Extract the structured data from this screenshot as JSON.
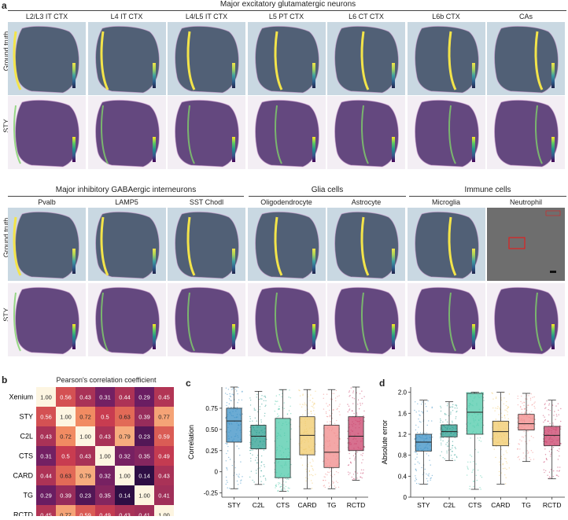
{
  "panel_a": {
    "letter": "a",
    "groups_top": [
      {
        "title": "Major excitatory glutamatergic neurons"
      }
    ],
    "groups_bottom": [
      {
        "title": "Major inhibitory GABAergic interneurons"
      },
      {
        "title": "Glia cells"
      },
      {
        "title": "Immune cells"
      }
    ],
    "row_labels": {
      "gt": "Ground truth",
      "sty": "STY"
    },
    "top_columns": [
      "L2/L3 IT CTX",
      "L4 IT CTX",
      "L4/L5 IT CTX",
      "L5 PT CTX",
      "L6 CT CTX",
      "L6b CTX",
      "CAs"
    ],
    "bottom_columns": [
      "Pvalb",
      "LAMP5",
      "SST Chodl",
      "Oligodendrocyte",
      "Astrocyte",
      "Microglia",
      "Neutrophil"
    ],
    "colors": {
      "gt_bg": "#c9d8e2",
      "sty_bg": "#f3eef4",
      "highlight": "#f3e44a",
      "tissue": "#4a2a6a",
      "red_box": "#e02020"
    }
  },
  "panel_b": {
    "letter": "b",
    "title": "Pearson's correlation coefficient",
    "labels": [
      "Xenium",
      "STY",
      "C2L",
      "CTS",
      "CARD",
      "TG",
      "RCTD"
    ],
    "matrix": [
      [
        1.0,
        0.56,
        0.43,
        0.31,
        0.44,
        0.29,
        0.45
      ],
      [
        0.56,
        1.0,
        0.72,
        0.5,
        0.63,
        0.39,
        0.77
      ],
      [
        0.43,
        0.72,
        1.0,
        0.43,
        0.79,
        0.23,
        0.59
      ],
      [
        0.31,
        0.5,
        0.43,
        1.0,
        0.32,
        0.35,
        0.49
      ],
      [
        0.44,
        0.63,
        0.79,
        0.32,
        1.0,
        0.14,
        0.43
      ],
      [
        0.29,
        0.39,
        0.23,
        0.35,
        0.14,
        1.0,
        0.41
      ],
      [
        0.45,
        0.77,
        0.59,
        0.49,
        0.43,
        0.41,
        1.0
      ]
    ],
    "display": [
      [
        "1.00",
        "0.56",
        "0.43",
        "0.31",
        "0.44",
        "0.29",
        "0.45"
      ],
      [
        "0.56",
        "1.00",
        "0.72",
        "0.5",
        "0.63",
        "0.39",
        "0.77"
      ],
      [
        "0.43",
        "0.72",
        "1.00",
        "0.43",
        "0.79",
        "0.23",
        "0.59"
      ],
      [
        "0.31",
        "0.5",
        "0.43",
        "1.00",
        "0.32",
        "0.35",
        "0.49"
      ],
      [
        "0.44",
        "0.63",
        "0.79",
        "0.32",
        "1.00",
        "0.14",
        "0.43"
      ],
      [
        "0.29",
        "0.39",
        "0.23",
        "0.35",
        "0.14",
        "1.00",
        "0.41"
      ],
      [
        "0.45",
        "0.77",
        "0.59",
        "0.49",
        "0.43",
        "0.41",
        "1.00"
      ]
    ]
  },
  "chart_data": [
    {
      "type": "box",
      "panel": "c",
      "ylabel": "Correlation",
      "categories": [
        "STY",
        "C2L",
        "CTS",
        "CARD",
        "TG",
        "RCTD"
      ],
      "colors": [
        "#3a8fc4",
        "#2a9d8f",
        "#4ec9a9",
        "#f0c96a",
        "#f08a8a",
        "#c9406a"
      ],
      "ylim": [
        -0.3,
        1.0
      ],
      "yticks": [
        "-0.25",
        "0",
        "0.25",
        "0.50",
        "0.75"
      ],
      "boxes": [
        {
          "whisker_low": -0.2,
          "q1": 0.35,
          "median": 0.6,
          "q3": 0.75,
          "whisker_high": 1.0
        },
        {
          "whisker_low": -0.15,
          "q1": 0.27,
          "median": 0.42,
          "q3": 0.55,
          "whisker_high": 0.95
        },
        {
          "whisker_low": -0.23,
          "q1": -0.07,
          "median": 0.15,
          "q3": 0.63,
          "whisker_high": 0.97
        },
        {
          "whisker_low": -0.2,
          "q1": 0.2,
          "median": 0.43,
          "q3": 0.65,
          "whisker_high": 0.97
        },
        {
          "whisker_low": -0.2,
          "q1": 0.05,
          "median": 0.23,
          "q3": 0.55,
          "whisker_high": 0.97
        },
        {
          "whisker_low": -0.1,
          "q1": 0.25,
          "median": 0.42,
          "q3": 0.65,
          "whisker_high": 1.0
        }
      ]
    },
    {
      "type": "box",
      "panel": "d",
      "ylabel": "Absolute error",
      "categories": [
        "STY",
        "C2L",
        "CTS",
        "CARD",
        "TG",
        "RCTD"
      ],
      "colors": [
        "#3a8fc4",
        "#2a9d8f",
        "#4ec9a9",
        "#f0c96a",
        "#f08a8a",
        "#c9406a"
      ],
      "ylim": [
        0,
        2.1
      ],
      "yticks": [
        "0",
        "0.4",
        "0.8",
        "1.2",
        "1.6",
        "2.0"
      ],
      "boxes": [
        {
          "whisker_low": 0.25,
          "q1": 0.88,
          "median": 1.05,
          "q3": 1.2,
          "whisker_high": 1.85
        },
        {
          "whisker_low": 0.7,
          "q1": 1.15,
          "median": 1.25,
          "q3": 1.38,
          "whisker_high": 1.82
        },
        {
          "whisker_low": 0.15,
          "q1": 1.2,
          "median": 1.62,
          "q3": 1.98,
          "whisker_high": 2.0
        },
        {
          "whisker_low": 0.25,
          "q1": 0.98,
          "median": 1.25,
          "q3": 1.45,
          "whisker_high": 2.0
        },
        {
          "whisker_low": 0.68,
          "q1": 1.28,
          "median": 1.4,
          "q3": 1.58,
          "whisker_high": 1.98
        },
        {
          "whisker_low": 0.35,
          "q1": 0.98,
          "median": 1.18,
          "q3": 1.35,
          "whisker_high": 1.85
        }
      ]
    }
  ]
}
